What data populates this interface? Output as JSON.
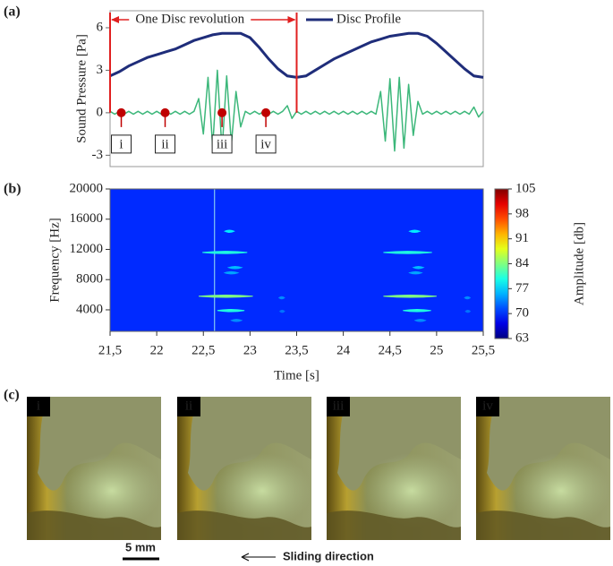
{
  "chart_data": [
    {
      "type": "line",
      "panel_label": "(a)",
      "y_label": "Sound Pressure [Pa]",
      "xlim": [
        21.5,
        25.5
      ],
      "ylim": [
        -3.8,
        7.2
      ],
      "yticks": [
        -3,
        0,
        3,
        6
      ],
      "revolution": {
        "label": "One Disc revolution",
        "x": [
          21.5,
          23.5
        ],
        "color": "#e02020"
      },
      "series": [
        {
          "color": "#3cb77a",
          "x": [
            21.5,
            21.55,
            21.6,
            21.65,
            21.7,
            21.75,
            21.8,
            21.85,
            21.9,
            21.95,
            22.0,
            22.05,
            22.1,
            22.15,
            22.2,
            22.25,
            22.3,
            22.35,
            22.4,
            22.45,
            22.5,
            22.55,
            22.6,
            22.65,
            22.7,
            22.75,
            22.8,
            22.85,
            22.9,
            22.95,
            23.0,
            23.05,
            23.1,
            23.15,
            23.2,
            23.25,
            23.3,
            23.35,
            23.4,
            23.45,
            23.5,
            23.55,
            23.6,
            23.65,
            23.7,
            23.75,
            23.8,
            23.85,
            23.9,
            23.95,
            24.0,
            24.05,
            24.1,
            24.15,
            24.2,
            24.25,
            24.3,
            24.35,
            24.4,
            24.45,
            24.5,
            24.55,
            24.6,
            24.65,
            24.7,
            24.75,
            24.8,
            24.85,
            24.9,
            24.95,
            25.0,
            25.05,
            25.1,
            25.15,
            25.2,
            25.25,
            25.3,
            25.35,
            25.4,
            25.45,
            25.5
          ],
          "values": [
            0.1,
            -0.1,
            0.1,
            -0.1,
            0.1,
            -0.1,
            0.1,
            -0.1,
            0.1,
            -0.1,
            0.1,
            -0.1,
            0.1,
            -0.1,
            0.1,
            -0.1,
            0.1,
            -0.1,
            0.1,
            1.0,
            -1.5,
            2.5,
            -2.4,
            3.0,
            -2.7,
            2.6,
            -2.2,
            1.5,
            -1.0,
            0.1,
            -0.1,
            0.1,
            -0.1,
            0.1,
            -0.1,
            0.1,
            -0.1,
            0.1,
            0.5,
            -0.4,
            0.1,
            -0.1,
            0.1,
            -0.1,
            0.1,
            -0.1,
            0.1,
            -0.1,
            0.1,
            -0.1,
            0.1,
            -0.1,
            0.1,
            -0.1,
            0.1,
            -0.1,
            0.1,
            -0.1,
            1.5,
            -2.0,
            2.4,
            -2.7,
            2.5,
            -2.5,
            2.0,
            -1.6,
            0.8,
            -0.1,
            0.1,
            -0.1,
            0.1,
            -0.1,
            0.1,
            -0.1,
            0.1,
            -0.1,
            0.1,
            -0.1,
            0.4,
            -0.3,
            0.1
          ]
        },
        {
          "name": "Disc Profile",
          "color": "#1f2d7a",
          "x": [
            21.5,
            21.6,
            21.7,
            21.8,
            21.9,
            22.0,
            22.1,
            22.2,
            22.3,
            22.4,
            22.5,
            22.6,
            22.7,
            22.8,
            22.9,
            23.0,
            23.1,
            23.2,
            23.3,
            23.4,
            23.5,
            23.6,
            23.7,
            23.8,
            23.9,
            24.0,
            24.1,
            24.2,
            24.3,
            24.4,
            24.5,
            24.6,
            24.7,
            24.8,
            24.9,
            25.0,
            25.1,
            25.2,
            25.3,
            25.4,
            25.5
          ],
          "values": [
            2.6,
            2.9,
            3.3,
            3.6,
            3.9,
            4.1,
            4.3,
            4.5,
            4.8,
            5.1,
            5.3,
            5.5,
            5.6,
            5.6,
            5.6,
            5.3,
            4.6,
            3.8,
            3.1,
            2.6,
            2.5,
            2.6,
            3.0,
            3.4,
            3.8,
            4.1,
            4.4,
            4.7,
            5.0,
            5.2,
            5.4,
            5.5,
            5.6,
            5.6,
            5.4,
            4.9,
            4.3,
            3.7,
            3.1,
            2.6,
            2.5
          ]
        }
      ],
      "markers": {
        "x": [
          21.62,
          22.09,
          22.7,
          23.17
        ],
        "values": [
          0,
          0,
          0,
          0
        ],
        "labels": [
          "i",
          "ii",
          "iii",
          "iv"
        ],
        "color": "#c00000"
      }
    },
    {
      "type": "heatmap",
      "panel_label": "(b)",
      "x_label": "Time [s]",
      "y_label": "Frequency [Hz]",
      "xlim": [
        21.5,
        25.5
      ],
      "xticks": [
        {
          "value": 21.5,
          "label": "21,5"
        },
        22,
        {
          "value": 22.5,
          "label": "22,5"
        },
        23,
        {
          "value": 23.5,
          "label": "23,5"
        },
        24,
        {
          "value": 24.5,
          "label": "24,5"
        },
        25,
        {
          "value": 25.5,
          "label": "25,5"
        }
      ],
      "ylim": [
        1150,
        20000
      ],
      "yticks": [
        4000,
        8000,
        12000,
        16000,
        20000
      ],
      "colorbar": {
        "label": "Amplitude [db]",
        "lim": [
          63,
          105
        ],
        "ticks": [
          63,
          70,
          77,
          84,
          91,
          98,
          105
        ]
      },
      "background_amplitude": 70,
      "cursor_x": 22.62,
      "streaks": {
        "x0": [
          22.45,
          22.49,
          22.65,
          22.73,
          22.77,
          22.73,
          22.8,
          23.31,
          23.32,
          24.43,
          24.43,
          24.64,
          24.71,
          24.75,
          24.71,
          24.77,
          25.3,
          25.31
        ],
        "x1": [
          23.03,
          22.97,
          22.94,
          22.83,
          22.91,
          22.87,
          22.91,
          23.37,
          23.37,
          25.0,
          24.95,
          24.94,
          24.82,
          24.86,
          24.84,
          24.88,
          25.36,
          25.36
        ],
        "y": [
          5800,
          11600,
          3900,
          14400,
          9600,
          8900,
          2600,
          5600,
          3800,
          5800,
          11600,
          3900,
          14400,
          9600,
          8900,
          2600,
          5600,
          3800
        ],
        "amplitude": [
          84,
          80,
          80,
          78,
          76,
          75,
          74,
          74,
          73,
          84,
          80,
          80,
          78,
          76,
          75,
          74,
          74,
          73
        ]
      }
    },
    {
      "type": "images",
      "panel_label": "(c)",
      "labels": [
        "i",
        "ii",
        "iii",
        "iv"
      ],
      "scale_bar": "5 mm",
      "direction": "Sliding direction"
    }
  ]
}
